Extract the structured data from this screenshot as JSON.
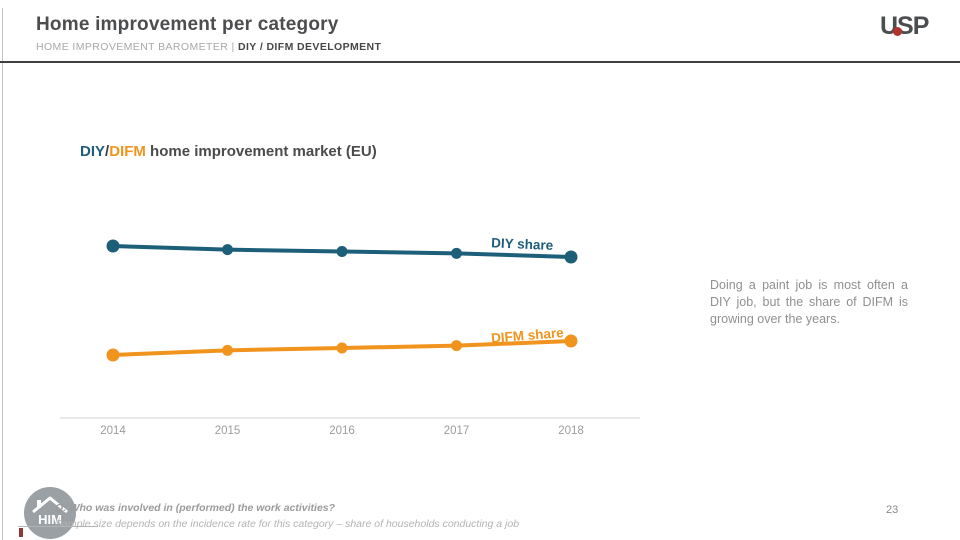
{
  "header": {
    "title": "Home improvement per category",
    "subtitle_prefix": "HOME IMPROVEMENT BAROMETER | ",
    "subtitle_bold": "DIY / DIFM DEVELOPMENT",
    "logo_text": "USP",
    "logo_dot_color": "#b2332a"
  },
  "chart_title": {
    "diy": "DIY",
    "slash": "/",
    "difm": "DIFM",
    "rest": " home improvement market (EU)"
  },
  "chart_data": {
    "type": "line",
    "title": "DIY/DIFM home improvement market (EU)",
    "x": [
      "2014",
      "2015",
      "2016",
      "2017",
      "2018"
    ],
    "series": [
      {
        "name": "DIY share",
        "color": "#1d5e78",
        "values": [
          76,
          75,
          74.5,
          74,
          73
        ]
      },
      {
        "name": "DIFM share",
        "color": "#f0941e",
        "values": [
          24,
          25,
          25.5,
          26,
          27
        ]
      }
    ],
    "unit": "%",
    "ylabel": "",
    "xlabel": "",
    "grid": false,
    "y_axis_hidden": true,
    "legend_position": "inline-labels-above-lines"
  },
  "annotation": {
    "text": "Doing a paint job is most often a DIY job, but the share of DIFM is growing over the years."
  },
  "footer": {
    "question": "Q: Who was involved in (performed) the work activities?",
    "note": "Sample size depends on the incidence rate for this category – share of households conducting a job",
    "badge_text": "HIM",
    "page_number": "23"
  },
  "colors": {
    "accent_teal": "#1d5e78",
    "accent_orange": "#f0941e",
    "header_rule": "#3e3e40",
    "axis": "#d9d9d9",
    "tick_label": "#9c9c9c"
  }
}
